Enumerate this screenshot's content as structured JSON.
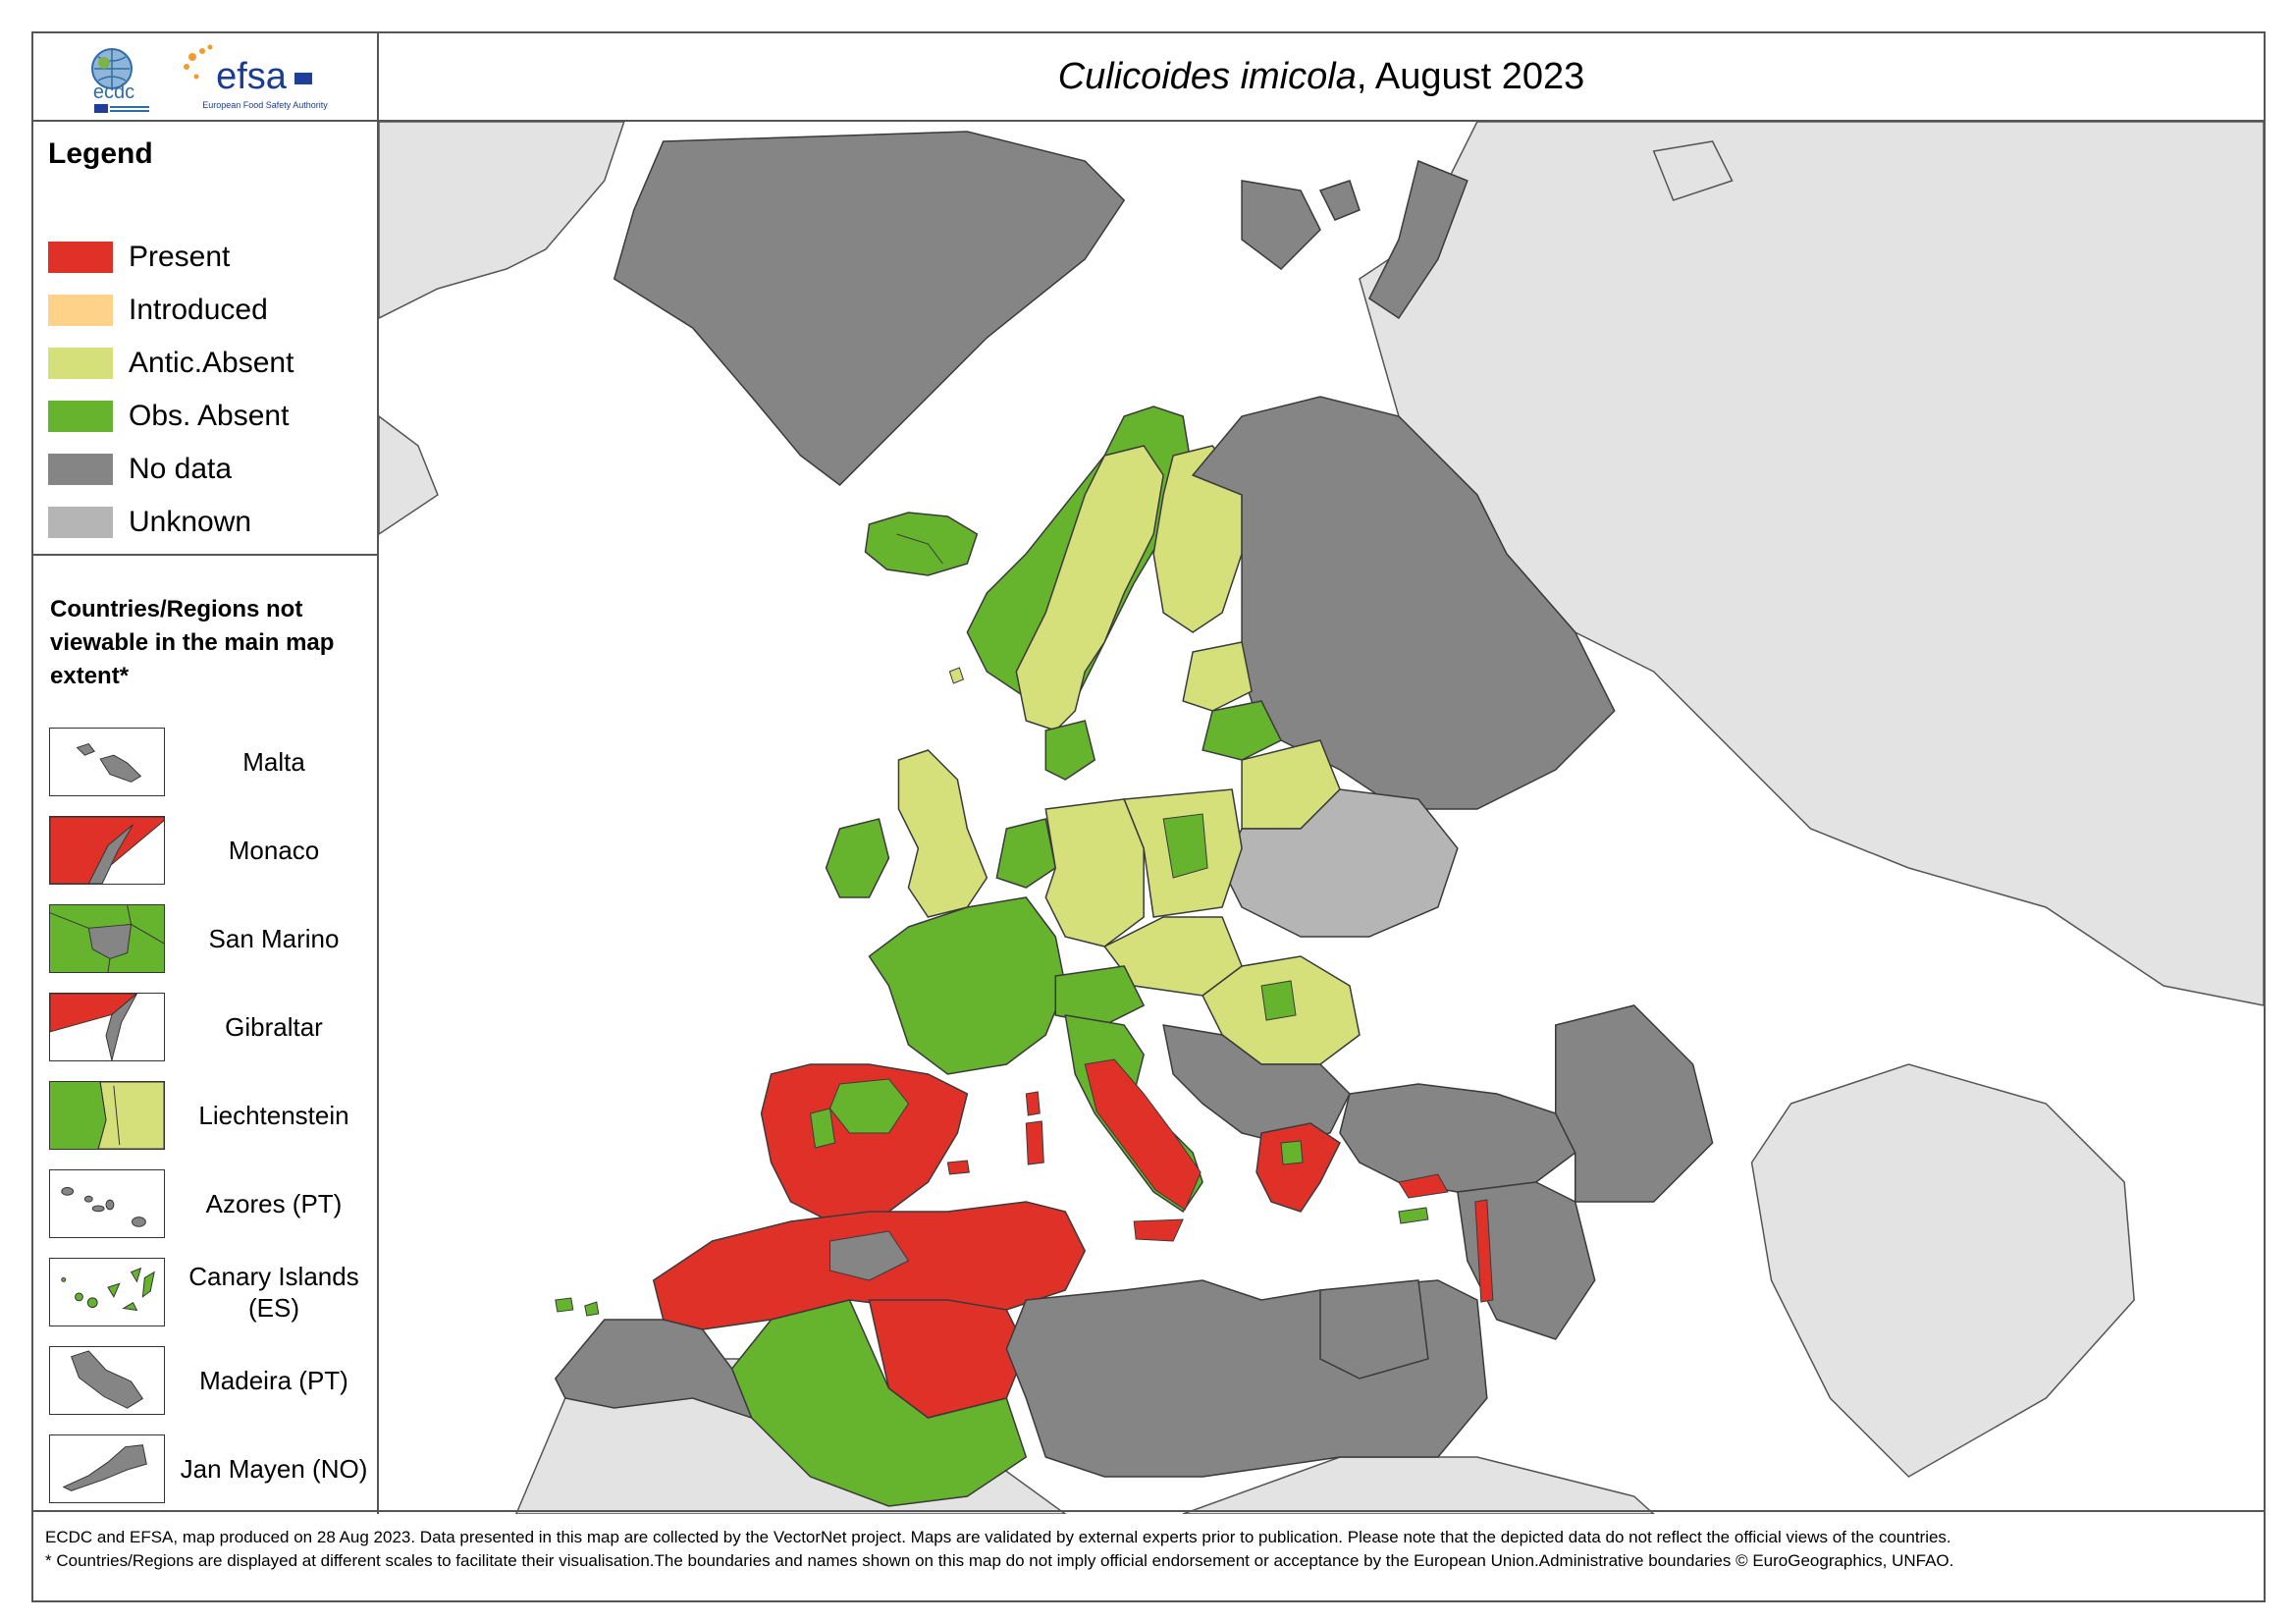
{
  "title": {
    "species": "Culicoides imicola",
    "date_suffix": ", August 2023"
  },
  "logos": {
    "ecdc": "ecdc",
    "efsa": "efsa",
    "efsa_sub": "European Food Safety Authority"
  },
  "legend": {
    "heading": "Legend",
    "items": [
      {
        "label": "Present",
        "color": "#e03128"
      },
      {
        "label": "Introduced",
        "color": "#ffd28a"
      },
      {
        "label": "Antic.Absent",
        "color": "#d6e07a"
      },
      {
        "label": "Obs. Absent",
        "color": "#66b32e"
      },
      {
        "label": "No data",
        "color": "#858585"
      },
      {
        "label": "Unknown",
        "color": "#b5b5b5"
      }
    ]
  },
  "not_viewable": {
    "heading": "Countries/Regions not viewable in the main map extent*",
    "insets": [
      {
        "label": "Malta"
      },
      {
        "label": "Monaco"
      },
      {
        "label": "San Marino"
      },
      {
        "label": "Gibraltar"
      },
      {
        "label": "Liechtenstein"
      },
      {
        "label": "Azores (PT)"
      },
      {
        "label": "Canary Islands (ES)"
      },
      {
        "label": "Madeira (PT)"
      },
      {
        "label": "Jan Mayen (NO)"
      }
    ]
  },
  "map_colors": {
    "sea": "#ffffff",
    "outside": "#e3e3e3",
    "border": "#3a3a3a"
  },
  "footer": {
    "line1": "ECDC and EFSA, map produced on 28 Aug 2023. Data presented in this map are collected by the VectorNet project. Maps are validated by external experts prior to publication. Please note that the depicted data do not reflect the official views of the countries.",
    "line2": "* Countries/Regions are displayed at different scales to facilitate their visualisation.The boundaries and names shown on this map do not imply official endorsement or acceptance by the European Union.Administrative boundaries © EuroGeographics, UNFAO."
  }
}
